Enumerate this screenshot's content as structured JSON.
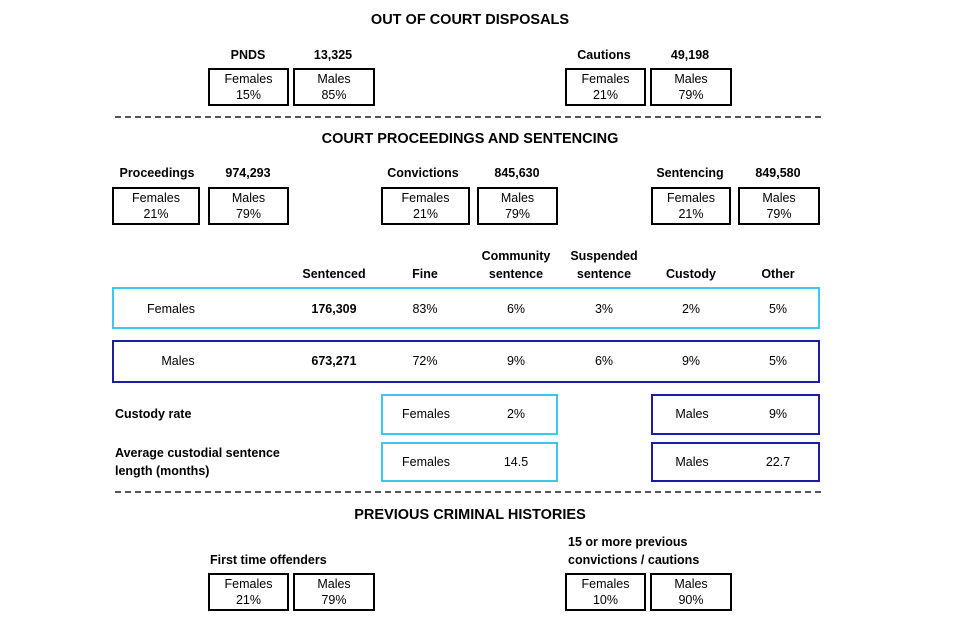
{
  "out_of_court_disposals": {
    "title": "OUT OF COURT DISPOSALS",
    "groups": [
      {
        "label": "PNDS",
        "total": "13,325",
        "females": {
          "label": "Females",
          "value": "15%"
        },
        "males": {
          "label": "Males",
          "value": "85%"
        }
      },
      {
        "label": "Cautions",
        "total": "49,198",
        "females": {
          "label": "Females",
          "value": "21%"
        },
        "males": {
          "label": "Males",
          "value": "79%"
        }
      }
    ]
  },
  "court_proceedings": {
    "title": "COURT PROCEEDINGS AND SENTENCING",
    "groups": [
      {
        "label": "Proceedings",
        "total": "974,293",
        "females": {
          "label": "Females",
          "value": "21%"
        },
        "males": {
          "label": "Males",
          "value": "79%"
        }
      },
      {
        "label": "Convictions",
        "total": "845,630",
        "females": {
          "label": "Females",
          "value": "21%"
        },
        "males": {
          "label": "Males",
          "value": "79%"
        }
      },
      {
        "label": "Sentencing",
        "total": "849,580",
        "females": {
          "label": "Females",
          "value": "21%"
        },
        "males": {
          "label": "Males",
          "value": "79%"
        }
      }
    ],
    "table": {
      "headers": [
        "Sentenced",
        "Fine",
        "Community sentence",
        "Suspended sentence",
        "Custody",
        "Other"
      ],
      "rows": [
        [
          "Females",
          "176,309",
          "83%",
          "6%",
          "3%",
          "2%",
          "5%"
        ],
        [
          "Males",
          "673,271",
          "72%",
          "9%",
          "6%",
          "9%",
          "5%"
        ]
      ]
    },
    "custody_rate": {
      "label": "Custody rate",
      "females": {
        "label": "Females",
        "value": "2%"
      },
      "males": {
        "label": "Males",
        "value": "9%"
      }
    },
    "average_custodial_sentence": {
      "label": "Average custodial sentence length (months)",
      "females": {
        "label": "Females",
        "value": "14.5"
      },
      "males": {
        "label": "Males",
        "value": "22.7"
      }
    }
  },
  "previous_criminal_histories": {
    "title": "PREVIOUS CRIMINAL HISTORIES",
    "groups": [
      {
        "label": "First time offenders",
        "females": {
          "label": "Females",
          "value": "21%"
        },
        "males": {
          "label": "Males",
          "value": "79%"
        }
      },
      {
        "label": "15 or more previous convictions / cautions",
        "females": {
          "label": "Females",
          "value": "10%"
        },
        "males": {
          "label": "Males",
          "value": "90%"
        }
      }
    ]
  }
}
